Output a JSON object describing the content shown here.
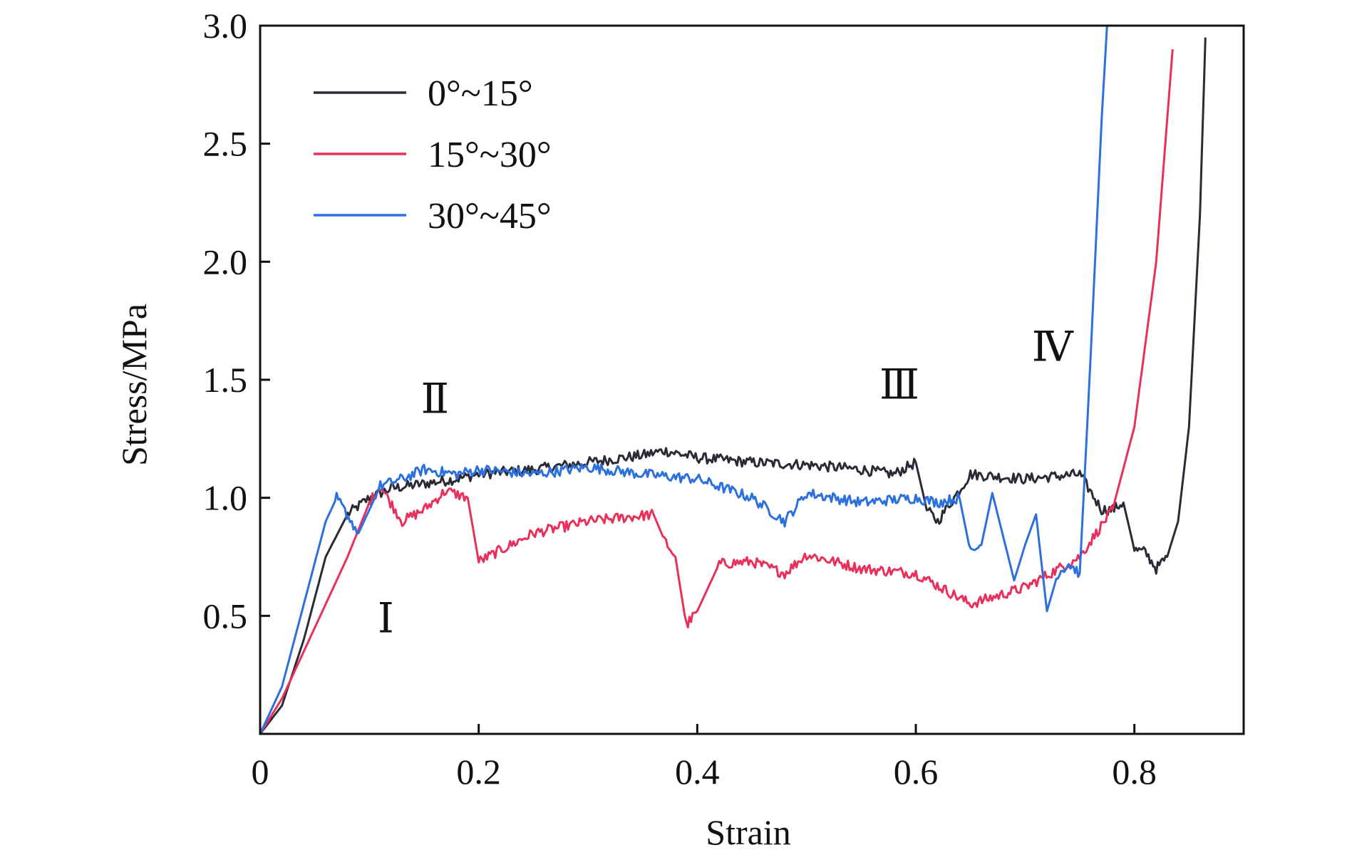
{
  "chart_data": {
    "type": "line",
    "xlabel": "Strain",
    "ylabel": "Stress/MPa",
    "xlim": [
      0,
      0.9
    ],
    "ylim": [
      0,
      3.0
    ],
    "x_ticks": [
      0,
      0.2,
      0.4,
      0.6,
      0.8
    ],
    "x_tick_labels": [
      "0",
      "0.2",
      "0.4",
      "0.6",
      "0.8"
    ],
    "y_ticks": [
      0.5,
      1.0,
      1.5,
      2.0,
      2.5,
      3.0
    ],
    "y_tick_labels": [
      "0.5",
      "1.0",
      "1.5",
      "2.0",
      "2.5",
      "3.0"
    ],
    "grid": false,
    "legend_position": "top-left",
    "series": [
      {
        "name": "0°~15°",
        "color": "#2b2b38",
        "x": [
          0.0,
          0.02,
          0.04,
          0.06,
          0.08,
          0.1,
          0.12,
          0.15,
          0.18,
          0.2,
          0.25,
          0.3,
          0.35,
          0.37,
          0.4,
          0.45,
          0.5,
          0.55,
          0.58,
          0.6,
          0.61,
          0.62,
          0.65,
          0.7,
          0.75,
          0.77,
          0.78,
          0.79,
          0.8,
          0.81,
          0.82,
          0.83,
          0.84,
          0.85,
          0.86,
          0.865
        ],
        "y": [
          0.0,
          0.12,
          0.4,
          0.75,
          0.93,
          1.0,
          1.04,
          1.06,
          1.08,
          1.1,
          1.12,
          1.15,
          1.18,
          1.2,
          1.17,
          1.15,
          1.14,
          1.12,
          1.1,
          1.15,
          0.95,
          0.9,
          1.1,
          1.08,
          1.1,
          0.95,
          0.95,
          0.98,
          0.78,
          0.77,
          0.7,
          0.75,
          0.9,
          1.3,
          2.2,
          2.95
        ]
      },
      {
        "name": "15°~30°",
        "color": "#e8305a",
        "x": [
          0.0,
          0.02,
          0.05,
          0.08,
          0.1,
          0.11,
          0.13,
          0.15,
          0.17,
          0.19,
          0.2,
          0.25,
          0.3,
          0.36,
          0.37,
          0.38,
          0.39,
          0.4,
          0.42,
          0.45,
          0.48,
          0.5,
          0.55,
          0.6,
          0.65,
          0.7,
          0.75,
          0.78,
          0.8,
          0.82,
          0.835
        ],
        "y": [
          0.0,
          0.15,
          0.45,
          0.75,
          0.98,
          1.05,
          0.9,
          0.95,
          1.03,
          1.0,
          0.73,
          0.85,
          0.9,
          0.93,
          0.82,
          0.75,
          0.46,
          0.52,
          0.72,
          0.73,
          0.68,
          0.76,
          0.7,
          0.68,
          0.55,
          0.62,
          0.75,
          0.95,
          1.3,
          2.0,
          2.9
        ]
      },
      {
        "name": "30°~45°",
        "color": "#2b70dd",
        "x": [
          0.0,
          0.02,
          0.04,
          0.06,
          0.07,
          0.09,
          0.11,
          0.13,
          0.15,
          0.18,
          0.2,
          0.25,
          0.3,
          0.35,
          0.4,
          0.45,
          0.48,
          0.5,
          0.55,
          0.6,
          0.62,
          0.64,
          0.65,
          0.66,
          0.67,
          0.69,
          0.7,
          0.71,
          0.72,
          0.73,
          0.74,
          0.75,
          0.76,
          0.77,
          0.775
        ],
        "y": [
          0.0,
          0.2,
          0.55,
          0.9,
          1.0,
          0.85,
          1.05,
          1.08,
          1.12,
          1.1,
          1.12,
          1.1,
          1.13,
          1.1,
          1.08,
          1.0,
          0.9,
          1.02,
          0.98,
          1.0,
          0.98,
          1.0,
          0.77,
          0.8,
          1.02,
          0.65,
          0.8,
          0.93,
          0.52,
          0.68,
          0.72,
          0.68,
          1.6,
          2.6,
          3.0
        ]
      }
    ],
    "annotations": [
      {
        "text": "Ⅰ",
        "x": 0.115,
        "y": 0.43
      },
      {
        "text": "Ⅱ",
        "x": 0.16,
        "y": 1.36
      },
      {
        "text": "Ⅲ",
        "x": 0.585,
        "y": 1.42
      },
      {
        "text": "Ⅳ",
        "x": 0.725,
        "y": 1.58
      }
    ]
  }
}
